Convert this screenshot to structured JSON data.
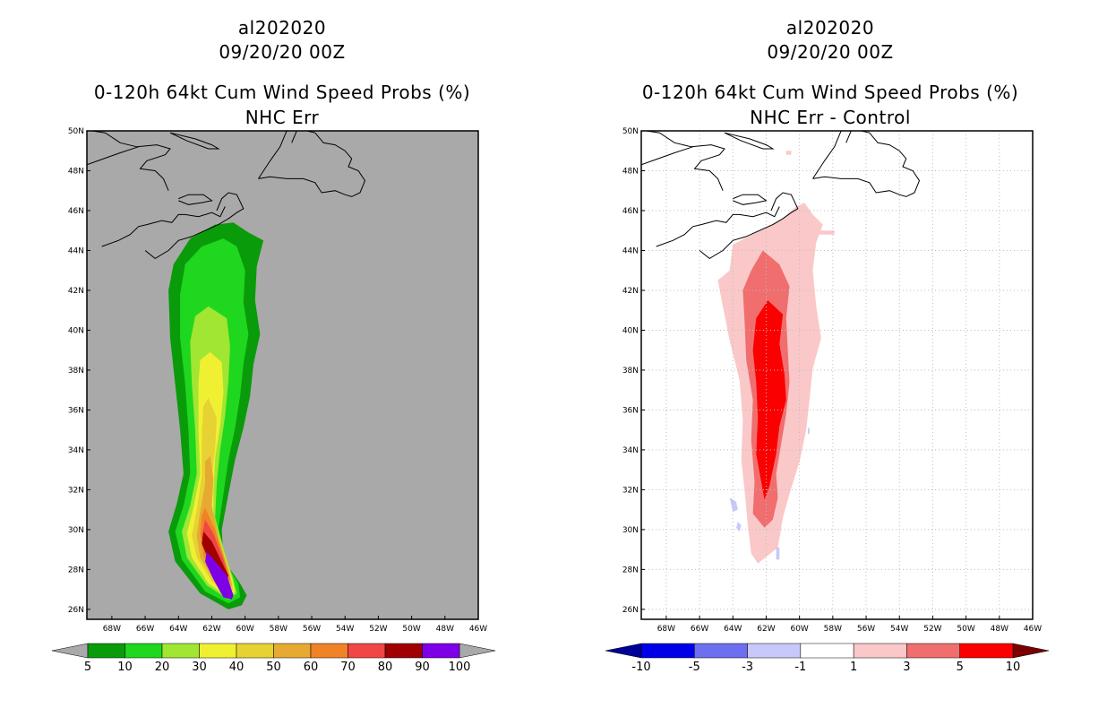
{
  "chart_data": [
    {
      "type": "contour-map",
      "title_lines": [
        "al202020",
        "09/20/20 00Z",
        "0-120h 64kt Cum Wind Speed Probs (%)",
        "NHC Err"
      ],
      "x_ticks": [
        "68W",
        "66W",
        "64W",
        "62W",
        "60W",
        "58W",
        "56W",
        "54W",
        "52W",
        "50W",
        "48W",
        "46W"
      ],
      "y_ticks": [
        "50N",
        "48N",
        "46N",
        "44N",
        "42N",
        "40N",
        "38N",
        "36N",
        "34N",
        "32N",
        "30N",
        "28N",
        "26N"
      ],
      "xlim_lon": [
        -69.5,
        -46
      ],
      "ylim_lat": [
        25.5,
        50
      ],
      "colorbar_labels": [
        "5",
        "10",
        "20",
        "30",
        "40",
        "50",
        "60",
        "70",
        "80",
        "90",
        "100"
      ],
      "colorbar_colors": [
        "#0a9b0a",
        "#1ed71e",
        "#a0e632",
        "#f0f032",
        "#e6d232",
        "#e6aa32",
        "#f08228",
        "#f04646",
        "#a00000",
        "#7d00e6"
      ],
      "colorbar_end_colors": [
        "#a9a9a9",
        "#a9a9a9"
      ],
      "background": "#a9a9a9"
    },
    {
      "type": "contour-map",
      "title_lines": [
        "al202020",
        "09/20/20 00Z",
        "0-120h 64kt Cum Wind Speed Probs (%)",
        "NHC Err - Control"
      ],
      "x_ticks": [
        "68W",
        "66W",
        "64W",
        "62W",
        "60W",
        "58W",
        "56W",
        "54W",
        "52W",
        "50W",
        "48W",
        "46W"
      ],
      "y_ticks": [
        "50N",
        "48N",
        "46N",
        "44N",
        "42N",
        "40N",
        "38N",
        "36N",
        "34N",
        "32N",
        "30N",
        "28N",
        "26N"
      ],
      "xlim_lon": [
        -69.5,
        -46
      ],
      "ylim_lat": [
        25.5,
        50
      ],
      "colorbar_labels": [
        "-10",
        "-5",
        "-3",
        "-1",
        "1",
        "3",
        "5",
        "10"
      ],
      "colorbar_colors": [
        "#0000e6",
        "#6e6ef0",
        "#c8c8fa",
        "#ffffff",
        "#fac8c8",
        "#f06e6e",
        "#fa0000"
      ],
      "colorbar_end_colors": [
        "#000096",
        "#780000"
      ],
      "background": "#ffffff",
      "gridlines": true
    }
  ]
}
